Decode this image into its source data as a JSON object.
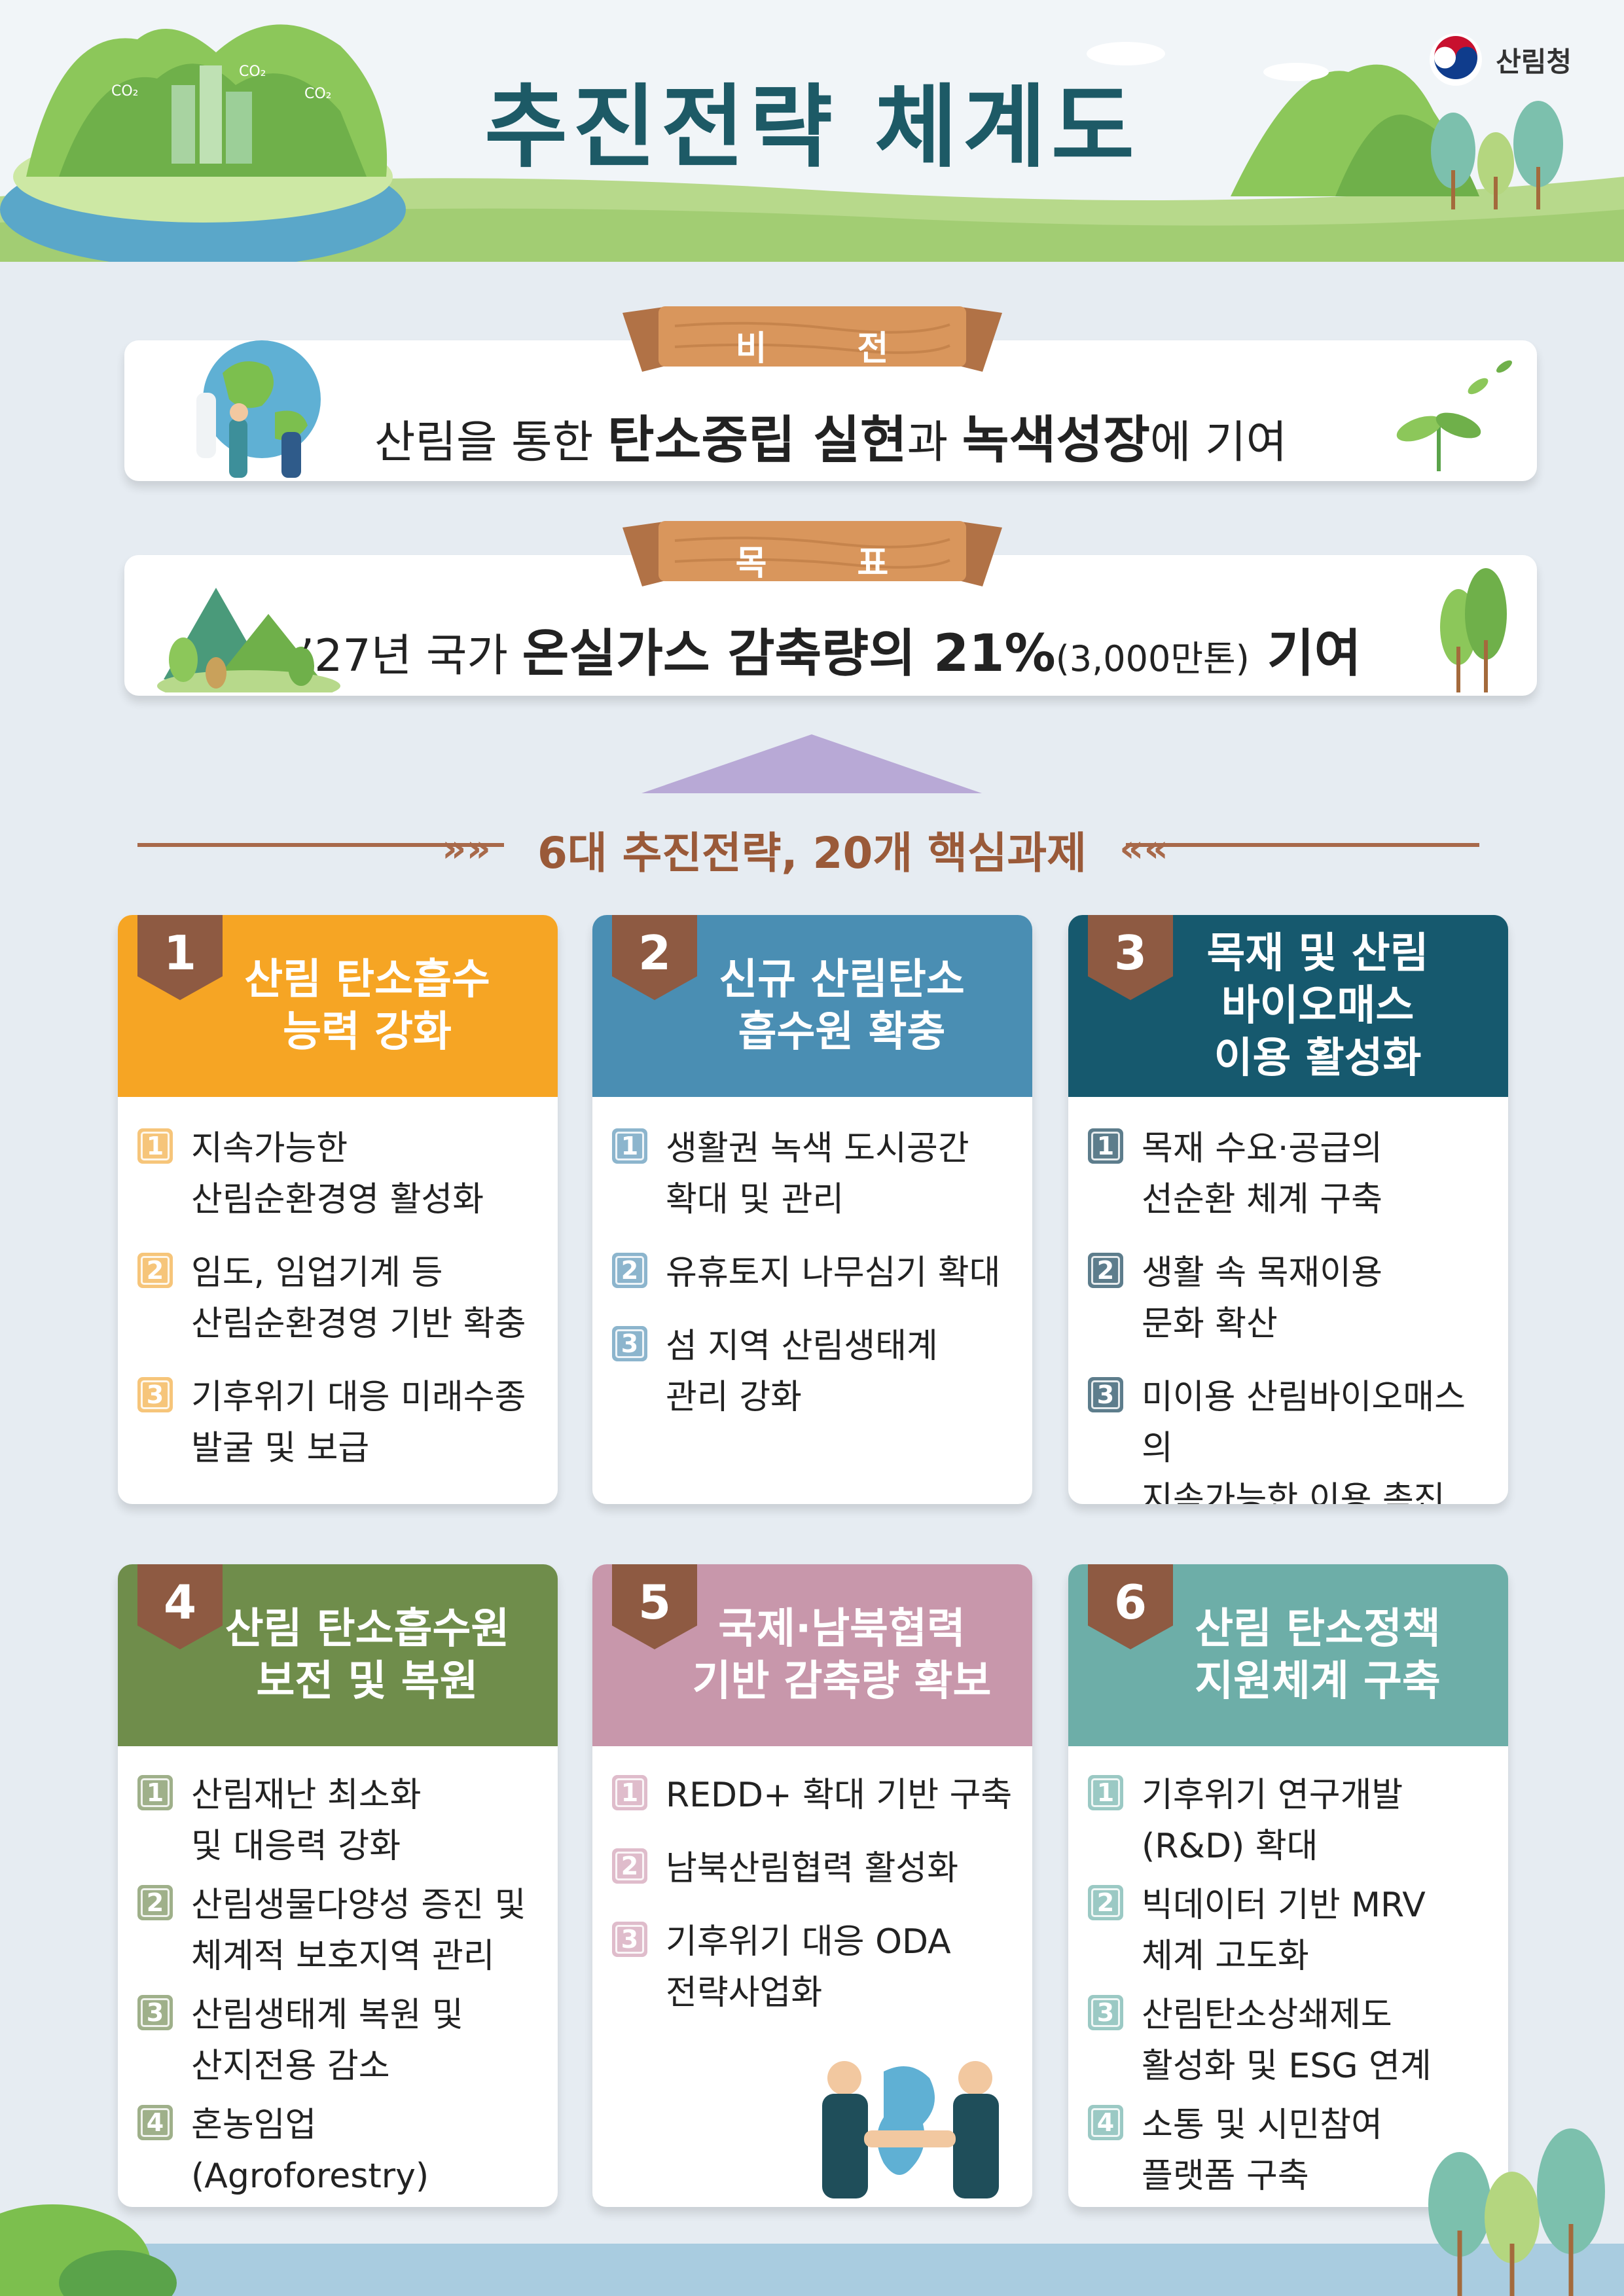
{
  "header": {
    "title": "추진전략  체계도",
    "logo_text": "산림청",
    "co2_labels": [
      "CO₂",
      "CO₂",
      "CO₂"
    ]
  },
  "vision": {
    "label": "비 전",
    "text_prefix": "산림을 통한 ",
    "text_bold1": "탄소중립 실현",
    "text_mid": "과 ",
    "text_bold2": "녹색성장",
    "text_suffix": "에 기여"
  },
  "goal": {
    "label": "목 표",
    "text_prefix": "’27년 국가 ",
    "text_bold": "온실가스 감축량의 21%",
    "text_small": "(3,000만톤)",
    "text_suffix": " 기여"
  },
  "section": {
    "heading": "6대 추진전략, 20개 핵심과제",
    "left_chevron": "»»",
    "right_chevron": "««"
  },
  "strategies": [
    {
      "number": "1",
      "title": "산림 탄소흡수\n능력 강화",
      "color": "#f6a524",
      "badge_color": "#f6c57a",
      "tasks": [
        {
          "number": "1",
          "text": "지속가능한\n산림순환경영 활성화"
        },
        {
          "number": "2",
          "text": "임도, 임업기계 등\n산림순환경영 기반 확충"
        },
        {
          "number": "3",
          "text": "기후위기 대응 미래수종\n발굴 및 보급"
        }
      ]
    },
    {
      "number": "2",
      "title": "신규 산림탄소\n흡수원 확충",
      "color": "#4a8eb3",
      "badge_color": "#8cb5cd",
      "tasks": [
        {
          "number": "1",
          "text": "생활권 녹색 도시공간\n확대 및 관리"
        },
        {
          "number": "2",
          "text": "유휴토지 나무심기 확대"
        },
        {
          "number": "3",
          "text": "섬 지역 산림생태계\n관리 강화"
        }
      ]
    },
    {
      "number": "3",
      "title": "목재 및 산림\n바이오매스\n이용  활성화",
      "color": "#16596e",
      "badge_color": "#5d7d8c",
      "tasks": [
        {
          "number": "1",
          "text": "목재 수요·공급의\n선순환 체계 구축"
        },
        {
          "number": "2",
          "text": "생활 속 목재이용\n문화 확산"
        },
        {
          "number": "3",
          "text": "미이용 산림바이오매스의\n지속가능한 이용 촉진"
        }
      ]
    },
    {
      "number": "4",
      "title": "산림 탄소흡수원\n보전 및 복원",
      "color": "#6f8d4b",
      "badge_color": "#9fb08a",
      "tasks": [
        {
          "number": "1",
          "text": "산림재난 최소화\n및 대응력 강화"
        },
        {
          "number": "2",
          "text": "산림생물다양성 증진 및\n체계적 보호지역 관리"
        },
        {
          "number": "3",
          "text": "산림생태계 복원 및\n산지전용 감소"
        },
        {
          "number": "4",
          "text": "혼농임업(Agroforestry)\n활성화"
        }
      ]
    },
    {
      "number": "5",
      "title": "국제·남북협력\n기반 감축량 확보",
      "color": "#c897ab",
      "badge_color": "#dfbccb",
      "tasks": [
        {
          "number": "1",
          "text": "REDD+ 확대 기반 구축"
        },
        {
          "number": "2",
          "text": "남북산림협력 활성화"
        },
        {
          "number": "3",
          "text": "기후위기 대응 ODA\n전략사업화"
        }
      ]
    },
    {
      "number": "6",
      "title": "산림 탄소정책\n지원체계 구축",
      "color": "#6daea8",
      "badge_color": "#9bc9c4",
      "tasks": [
        {
          "number": "1",
          "text": "기후위기 연구개발\n(R&D) 확대"
        },
        {
          "number": "2",
          "text": "빅데이터 기반 MRV\n체계 고도화"
        },
        {
          "number": "3",
          "text": "산림탄소상쇄제도\n활성화 및 ESG 연계"
        },
        {
          "number": "4",
          "text": "소통 및 시민참여\n플랫폼 구축"
        }
      ]
    }
  ]
}
